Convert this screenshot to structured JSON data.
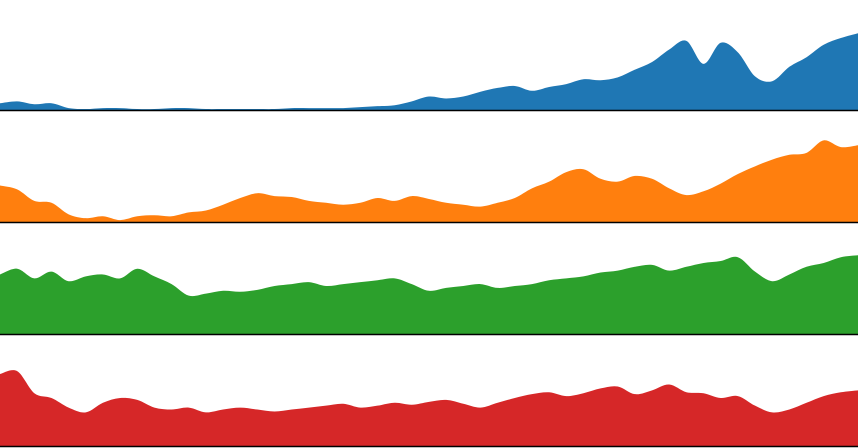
{
  "chart_data": {
    "type": "area",
    "title": "",
    "xlabel": "",
    "ylabel": "",
    "grid": false,
    "legend": "none",
    "x_range": [
      0,
      100
    ],
    "ylim": [
      0,
      1
    ],
    "x": [
      0,
      2,
      4,
      6,
      8,
      10,
      12,
      14,
      16,
      18,
      20,
      22,
      24,
      26,
      28,
      30,
      32,
      34,
      36,
      38,
      40,
      42,
      44,
      46,
      48,
      50,
      52,
      54,
      56,
      58,
      60,
      62,
      64,
      66,
      68,
      70,
      72,
      74,
      76,
      78,
      80,
      82,
      84,
      86,
      88,
      90,
      92,
      94,
      96,
      98,
      100
    ],
    "series": [
      {
        "color": "#1f77b4",
        "values": [
          0.07,
          0.09,
          0.06,
          0.07,
          0.02,
          0.01,
          0.02,
          0.02,
          0.01,
          0.01,
          0.02,
          0.02,
          0.01,
          0.01,
          0.01,
          0.01,
          0.01,
          0.02,
          0.02,
          0.02,
          0.02,
          0.03,
          0.04,
          0.05,
          0.09,
          0.14,
          0.12,
          0.14,
          0.19,
          0.23,
          0.25,
          0.2,
          0.24,
          0.27,
          0.32,
          0.31,
          0.34,
          0.42,
          0.5,
          0.63,
          0.72,
          0.48,
          0.7,
          0.6,
          0.35,
          0.3,
          0.45,
          0.55,
          0.68,
          0.75,
          0.8
        ]
      },
      {
        "color": "#ff7f0e",
        "values": [
          0.38,
          0.34,
          0.22,
          0.2,
          0.08,
          0.04,
          0.06,
          0.02,
          0.06,
          0.07,
          0.06,
          0.1,
          0.12,
          0.18,
          0.25,
          0.3,
          0.27,
          0.26,
          0.22,
          0.2,
          0.18,
          0.2,
          0.25,
          0.22,
          0.27,
          0.24,
          0.2,
          0.18,
          0.16,
          0.2,
          0.25,
          0.35,
          0.42,
          0.52,
          0.55,
          0.45,
          0.42,
          0.48,
          0.45,
          0.35,
          0.28,
          0.32,
          0.4,
          0.5,
          0.58,
          0.65,
          0.7,
          0.72,
          0.85,
          0.78,
          0.8
        ]
      },
      {
        "color": "#2ca02c",
        "values": [
          0.62,
          0.68,
          0.58,
          0.65,
          0.55,
          0.6,
          0.62,
          0.58,
          0.68,
          0.6,
          0.52,
          0.4,
          0.42,
          0.45,
          0.44,
          0.46,
          0.5,
          0.52,
          0.54,
          0.5,
          0.52,
          0.54,
          0.56,
          0.58,
          0.52,
          0.45,
          0.48,
          0.5,
          0.52,
          0.48,
          0.5,
          0.52,
          0.56,
          0.58,
          0.6,
          0.64,
          0.66,
          0.7,
          0.72,
          0.66,
          0.7,
          0.74,
          0.76,
          0.8,
          0.65,
          0.55,
          0.62,
          0.7,
          0.74,
          0.8,
          0.82
        ]
      },
      {
        "color": "#d62728",
        "values": [
          0.75,
          0.78,
          0.55,
          0.5,
          0.4,
          0.35,
          0.45,
          0.5,
          0.48,
          0.4,
          0.38,
          0.4,
          0.35,
          0.38,
          0.4,
          0.38,
          0.36,
          0.38,
          0.4,
          0.42,
          0.44,
          0.4,
          0.42,
          0.45,
          0.43,
          0.46,
          0.48,
          0.44,
          0.4,
          0.45,
          0.5,
          0.54,
          0.56,
          0.52,
          0.55,
          0.6,
          0.62,
          0.54,
          0.58,
          0.64,
          0.56,
          0.55,
          0.5,
          0.52,
          0.42,
          0.35,
          0.38,
          0.45,
          0.52,
          0.56,
          0.58
        ]
      }
    ]
  }
}
